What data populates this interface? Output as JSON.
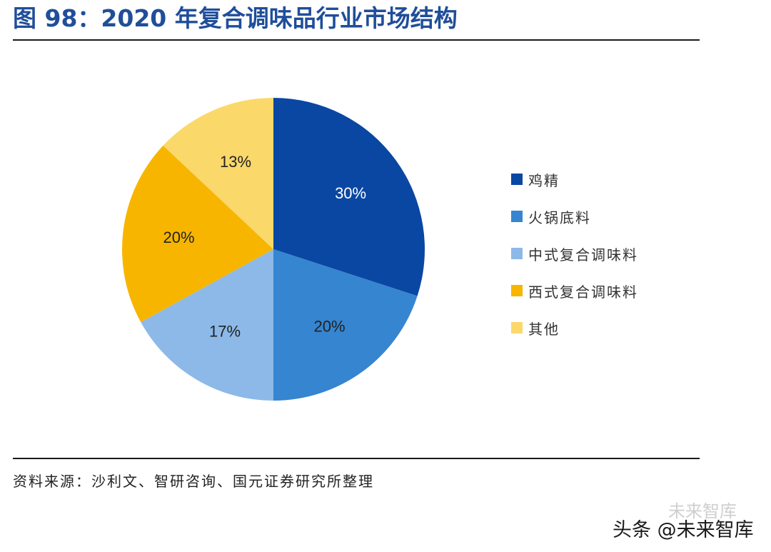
{
  "header": {
    "title": "图 98：2020 年复合调味品行业市场结构"
  },
  "chart_data": {
    "type": "pie",
    "title": "2020 年复合调味品行业市场结构",
    "categories": [
      "鸡精",
      "火锅底料",
      "中式复合调味料",
      "西式复合调味料",
      "其他"
    ],
    "values": [
      30,
      20,
      17,
      20,
      13
    ],
    "labels": [
      "30%",
      "20%",
      "17%",
      "20%",
      "13%"
    ],
    "colors": [
      "#0a47a3",
      "#3585d0",
      "#8cb9e8",
      "#f7b500",
      "#fad86a"
    ],
    "label_colors": [
      "#ffffff",
      "#222222",
      "#222222",
      "#222222",
      "#222222"
    ],
    "legend_position": "right"
  },
  "footer": {
    "source": "资料来源：沙利文、智研咨询、国元证券研究所整理"
  },
  "watermark": {
    "text": "头条 @未来智库",
    "ghost": "未来智库"
  }
}
